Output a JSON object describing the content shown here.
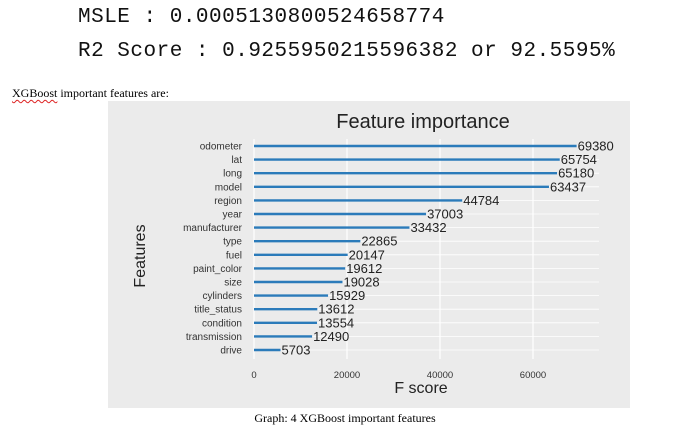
{
  "metrics": {
    "msle": "MSLE : 0.0005130800524658774",
    "r2": "R2 Score : 0.9255950215596382 or 92.5595%"
  },
  "intro_text_squiggle": "XGBoost",
  "intro_text_rest": " important features are:",
  "caption": "Graph: 4 XGBoost important features",
  "colors": {
    "bar": "#2b7bba",
    "panel": "#ebebeb",
    "grid": "#ffffff"
  },
  "chart_data": {
    "type": "bar",
    "orientation": "horizontal",
    "title": "Feature importance",
    "xlabel": "F score",
    "ylabel": "Features",
    "xlim": [
      0,
      80000
    ],
    "xticks": [
      "0",
      "20000",
      "40000",
      "60000"
    ],
    "xtick_values": [
      0,
      20000,
      40000,
      60000
    ],
    "grid": true,
    "categories": [
      "odometer",
      "lat",
      "long",
      "model",
      "region",
      "year",
      "manufacturer",
      "type",
      "fuel",
      "paint_color",
      "size",
      "cylinders",
      "title_status",
      "condition",
      "transmission",
      "drive"
    ],
    "values": [
      69380,
      65754,
      65180,
      63437,
      44784,
      37003,
      33432,
      22865,
      20147,
      19612,
      19028,
      15929,
      13612,
      13554,
      12490,
      5703
    ],
    "labels": [
      "69380",
      "65754",
      "65180",
      "63437",
      "44784",
      "37003",
      "33432",
      "22865",
      "20147",
      "19612",
      "19028",
      "15929",
      "13612",
      "13554",
      "12490",
      "5703"
    ]
  }
}
